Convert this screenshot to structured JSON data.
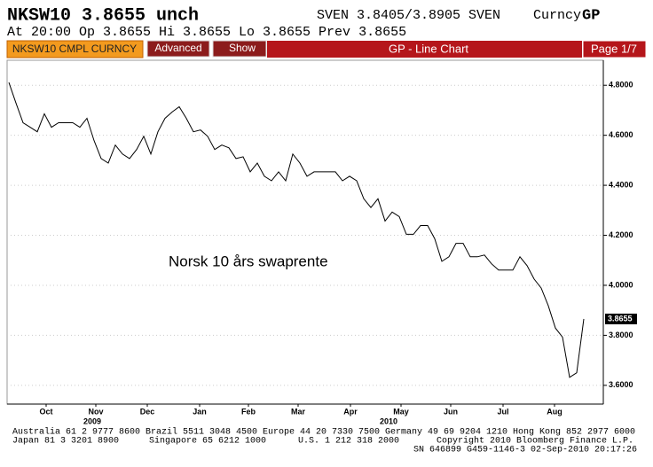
{
  "header": {
    "ticker": "NKSW10 3.8655 unch",
    "quote": "SVEN 3.8405/3.8905 SVEN",
    "market": "Curncy",
    "function": "GP",
    "line2": "At 20:00 Op 3.8655  Hi 3.8655  Lo 3.8655  Prev 3.8655"
  },
  "toolbar": {
    "security": "NKSW10 CMPL CURNCY",
    "advanced": "Advanced",
    "show": "Show",
    "title": "GP - Line Chart",
    "page": "Page 1/7"
  },
  "chart_data": {
    "type": "line",
    "annotation": "Norsk 10 års swaprente",
    "color": "#000000",
    "values": [
      4.811,
      4.729,
      4.65,
      4.632,
      4.614,
      4.686,
      4.632,
      4.65,
      4.65,
      4.65,
      4.632,
      4.668,
      4.579,
      4.507,
      4.489,
      4.561,
      4.525,
      4.507,
      4.543,
      4.596,
      4.525,
      4.614,
      4.668,
      4.693,
      4.714,
      4.668,
      4.614,
      4.621,
      4.596,
      4.543,
      4.561,
      4.55,
      4.507,
      4.514,
      4.454,
      4.489,
      4.436,
      4.418,
      4.454,
      4.418,
      4.525,
      4.489,
      4.436,
      4.454,
      4.454,
      4.454,
      4.454,
      4.418,
      4.436,
      4.418,
      4.346,
      4.311,
      4.346,
      4.257,
      4.293,
      4.275,
      4.204,
      4.204,
      4.239,
      4.239,
      4.186,
      4.096,
      4.114,
      4.168,
      4.168,
      4.114,
      4.114,
      4.121,
      4.086,
      4.061,
      4.061,
      4.061,
      4.114,
      4.079,
      4.025,
      3.989,
      3.918,
      3.829,
      3.793,
      3.632,
      3.65,
      3.8655
    ],
    "xlim": [
      -0.25,
      83.75
    ],
    "xticks": [
      {
        "value": 5.25,
        "label": "Oct"
      },
      {
        "value": 12.25,
        "label": "Nov"
      },
      {
        "value": 19.5,
        "label": "Dec"
      },
      {
        "value": 26.875,
        "label": "Jan"
      },
      {
        "value": 33.75,
        "label": "Feb"
      },
      {
        "value": 40.75,
        "label": "Mar"
      },
      {
        "value": 48.125,
        "label": "Apr"
      },
      {
        "value": 55.25,
        "label": "May"
      },
      {
        "value": 62.25,
        "label": "Jun"
      },
      {
        "value": 69.625,
        "label": "Jul"
      },
      {
        "value": 76.875,
        "label": "Aug"
      }
    ],
    "year_ticks": [
      {
        "value": 11.75,
        "label": "2009"
      },
      {
        "value": 53.5,
        "label": "2010"
      }
    ],
    "ylim": [
      3.525,
      4.9
    ],
    "yticks": [
      {
        "value": 3.6,
        "label": "3.6000"
      },
      {
        "value": 3.8,
        "label": "3.8000"
      },
      {
        "value": 4.0,
        "label": "4.0000"
      },
      {
        "value": 4.2,
        "label": "4.2000"
      },
      {
        "value": 4.4,
        "label": "4.4000"
      },
      {
        "value": 4.6,
        "label": "4.6000"
      },
      {
        "value": 4.8,
        "label": "4.8000"
      }
    ],
    "grid": true
  },
  "footer": {
    "line1": "Australia 61 2 9777 8600 Brazil 5511 3048 4500 Europe 44 20 7330 7500 Germany 49 69 9204 1210 Hong Kong 852 2977 6000",
    "japan": "Japan 81 3 3201 8900",
    "singapore": "Singapore 65 6212 1000",
    "us": "U.S. 1 212 318 2000",
    "copyright": "Copyright 2010 Bloomberg Finance L.P.",
    "sn": "SN 646899 G459-1146-3 02-Sep-2010 20:17:26"
  }
}
